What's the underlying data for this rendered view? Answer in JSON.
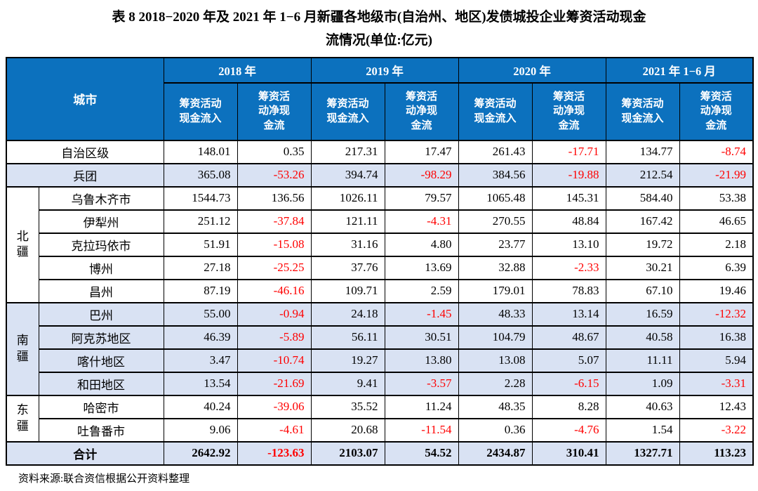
{
  "title": {
    "line1": "表 8  2018−2020 年及 2021 年 1−6 月新疆各地级市(自治州、地区)发债城投企业筹资活动现金",
    "line2": "流情况(单位:亿元)"
  },
  "source_note": "资料来源:联合资信根据公开资料整理",
  "colors": {
    "header_bg": "#0C71BE",
    "header_text": "#FFFFFF",
    "shaded_row_bg": "#D9E2F3",
    "negative": "#FF0000",
    "border": "#000000"
  },
  "table": {
    "corner_label": "城市",
    "year_groups": [
      {
        "label": "2018 年",
        "subs": [
          "筹资活动\n现金流入",
          "筹资活\n动净现\n金流"
        ]
      },
      {
        "label": "2019 年",
        "subs": [
          "筹资活动\n现金流入",
          "筹资活\n动净现\n金流"
        ]
      },
      {
        "label": "2020 年",
        "subs": [
          "筹资活动\n现金流入",
          "筹资活\n动净现\n金流"
        ]
      },
      {
        "label": "2021 年 1−6 月",
        "subs": [
          "筹资活动\n现金流入",
          "筹资活\n动净现\n金流"
        ]
      }
    ],
    "rows": [
      {
        "city": "自治区级",
        "city_colspan": 2,
        "shaded": false,
        "bold": false,
        "values": [
          "148.01",
          "0.35",
          "217.31",
          "17.47",
          "261.43",
          "-17.71",
          "134.77",
          "-8.74"
        ]
      },
      {
        "city": "兵团",
        "city_colspan": 2,
        "shaded": true,
        "bold": false,
        "values": [
          "365.08",
          "-53.26",
          "394.74",
          "-98.29",
          "384.56",
          "-19.88",
          "212.54",
          "-21.99"
        ]
      },
      {
        "region": {
          "label": "北疆",
          "span": 5
        },
        "city": "乌鲁木齐市",
        "shaded": false,
        "bold": false,
        "values": [
          "1544.73",
          "136.56",
          "1026.11",
          "79.57",
          "1065.48",
          "145.31",
          "584.40",
          "53.38"
        ]
      },
      {
        "city": "伊犁州",
        "shaded": false,
        "bold": false,
        "values": [
          "251.12",
          "-37.84",
          "121.11",
          "-4.31",
          "270.55",
          "48.84",
          "167.42",
          "46.65"
        ]
      },
      {
        "city": "克拉玛依市",
        "shaded": false,
        "bold": false,
        "values": [
          "51.91",
          "-15.08",
          "31.16",
          "4.80",
          "23.77",
          "13.10",
          "19.72",
          "2.18"
        ]
      },
      {
        "city": "博州",
        "shaded": false,
        "bold": false,
        "values": [
          "27.18",
          "-25.25",
          "37.76",
          "13.69",
          "32.88",
          "-2.33",
          "30.21",
          "6.39"
        ]
      },
      {
        "city": "昌州",
        "shaded": false,
        "bold": false,
        "values": [
          "87.19",
          "-46.16",
          "109.71",
          "2.59",
          "179.01",
          "78.83",
          "67.10",
          "19.46"
        ]
      },
      {
        "region": {
          "label": "南疆",
          "span": 4
        },
        "city": "巴州",
        "shaded": true,
        "bold": false,
        "values": [
          "55.00",
          "-0.94",
          "24.18",
          "-1.45",
          "48.33",
          "13.14",
          "16.59",
          "-12.32"
        ]
      },
      {
        "city": "阿克苏地区",
        "shaded": true,
        "bold": false,
        "values": [
          "46.39",
          "-5.89",
          "56.11",
          "30.51",
          "104.79",
          "48.67",
          "40.58",
          "16.38"
        ]
      },
      {
        "city": "喀什地区",
        "shaded": true,
        "bold": false,
        "values": [
          "3.47",
          "-10.74",
          "19.27",
          "13.80",
          "13.08",
          "5.07",
          "11.11",
          "5.94"
        ]
      },
      {
        "city": "和田地区",
        "shaded": true,
        "bold": false,
        "values": [
          "13.54",
          "-21.69",
          "9.41",
          "-3.57",
          "2.28",
          "-6.15",
          "1.09",
          "-3.31"
        ]
      },
      {
        "region": {
          "label": "东疆",
          "span": 2
        },
        "city": "哈密市",
        "shaded": false,
        "bold": false,
        "values": [
          "40.24",
          "-39.06",
          "35.52",
          "11.24",
          "48.35",
          "8.28",
          "40.63",
          "12.43"
        ]
      },
      {
        "city": "吐鲁番市",
        "shaded": false,
        "bold": false,
        "values": [
          "9.06",
          "-4.61",
          "20.68",
          "-11.54",
          "0.36",
          "-4.76",
          "1.54",
          "-3.22"
        ]
      },
      {
        "city": "合计",
        "city_colspan": 2,
        "shaded": true,
        "bold": true,
        "values": [
          "2642.92",
          "-123.63",
          "2103.07",
          "54.52",
          "2434.87",
          "310.41",
          "1327.71",
          "113.23"
        ]
      }
    ]
  }
}
